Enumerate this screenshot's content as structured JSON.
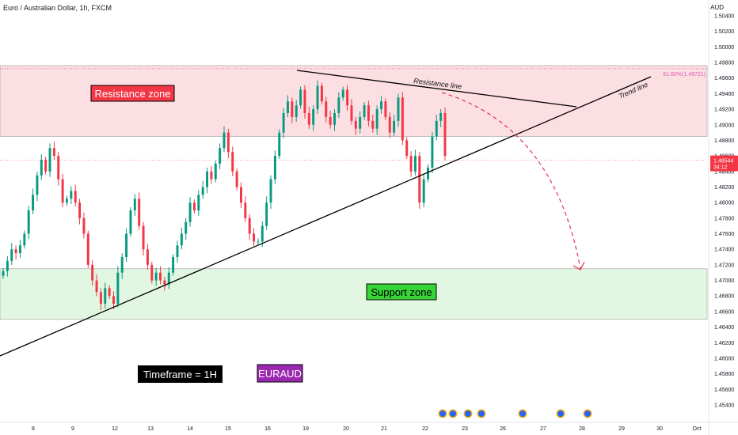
{
  "header": {
    "symbol_title": "Euro / Australian Dollar, 1h, FXCM",
    "currency": "AUD"
  },
  "colors": {
    "up": "#089981",
    "down": "#f23645",
    "resistance_fill": "#fcdfe2",
    "support_fill": "#e2f7e1",
    "zone_border": "#999999",
    "fib_line": "#e35bb5",
    "price_badge": "#f23645",
    "projection": "#e0344f"
  },
  "chart_data": {
    "type": "candlestick",
    "symbol": "EURAUD",
    "timeframe": "1h",
    "y_axis_ticks": [
      "1.50400",
      "1.50200",
      "1.50000",
      "1.49800",
      "1.49600",
      "1.49400",
      "1.49200",
      "1.49000",
      "1.48800",
      "1.48600",
      "1.48400",
      "1.48200",
      "1.48000",
      "1.47800",
      "1.47600",
      "1.47400",
      "1.47200",
      "1.47000",
      "1.46800",
      "1.46600",
      "1.46400",
      "1.46200",
      "1.46000",
      "1.45800",
      "1.45600",
      "1.45400"
    ],
    "x_axis_ticks": [
      "8",
      "9",
      "12",
      "13",
      "14",
      "15",
      "16",
      "19",
      "20",
      "21",
      "22",
      "23",
      "26",
      "27",
      "28",
      "29",
      "30",
      "Oct"
    ],
    "ylim": [
      1.453,
      1.505
    ],
    "current_price": "1.48544",
    "countdown": "34:12",
    "close_series": [
      1.4712,
      1.4725,
      1.474,
      1.4735,
      1.4745,
      1.476,
      1.479,
      1.481,
      1.4835,
      1.4855,
      1.484,
      1.487,
      1.486,
      1.483,
      1.48,
      1.4805,
      1.4815,
      1.48,
      1.478,
      1.476,
      1.472,
      1.47,
      1.4685,
      1.467,
      1.469,
      1.468,
      1.467,
      1.471,
      1.473,
      1.476,
      1.479,
      1.4805,
      1.477,
      1.474,
      1.472,
      1.47,
      1.471,
      1.47,
      1.4695,
      1.471,
      1.473,
      1.4745,
      1.476,
      1.4775,
      1.48,
      1.479,
      1.481,
      1.482,
      1.484,
      1.483,
      1.485,
      1.487,
      1.489,
      1.4865,
      1.484,
      1.482,
      1.48,
      1.478,
      1.476,
      1.475,
      1.475,
      1.477,
      1.48,
      1.483,
      1.486,
      1.489,
      1.4915,
      1.493,
      1.491,
      1.4925,
      1.4945,
      1.4915,
      1.49,
      1.492,
      1.495,
      1.493,
      1.491,
      1.49,
      1.4915,
      1.4935,
      1.4945,
      1.4925,
      1.4905,
      1.4895,
      1.491,
      1.4925,
      1.4905,
      1.4895,
      1.492,
      1.493,
      1.491,
      1.489,
      1.4905,
      1.4935,
      1.488,
      1.486,
      1.484,
      1.486,
      1.48,
      1.483,
      1.4845,
      1.4885,
      1.4905,
      1.4915,
      1.486
    ],
    "resistance_zone": {
      "low": 1.4885,
      "high": 1.4976,
      "label": "Resistance zone"
    },
    "support_zone": {
      "low": 1.465,
      "high": 1.4715,
      "label": "Support zone"
    },
    "fib_level": {
      "value": 1.49721,
      "label": "61.80%(1.49721)"
    },
    "annotations": {
      "resistance_line": "Resistance line",
      "trend_line": "Trend line",
      "timeframe_box": "Timeframe = 1H",
      "pair_box": "EURAUD"
    },
    "event_markers": [
      "flag",
      "flag",
      "event",
      "flag",
      "flag",
      "flag",
      "event"
    ]
  }
}
